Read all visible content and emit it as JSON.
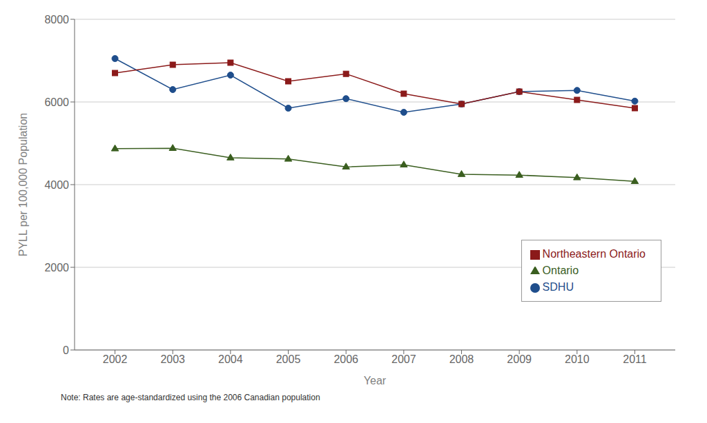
{
  "chart_data": {
    "type": "line",
    "x": [
      2002,
      2003,
      2004,
      2005,
      2006,
      2007,
      2008,
      2009,
      2010,
      2011
    ],
    "series": [
      {
        "name": "SDHU",
        "color": "#1f4e8c",
        "marker": "circle",
        "values": [
          7050,
          6300,
          6650,
          5850,
          6080,
          5750,
          5950,
          6250,
          6280,
          6020
        ]
      },
      {
        "name": "Northeastern Ontario",
        "color": "#8b1a1a",
        "marker": "square",
        "values": [
          6700,
          6900,
          6950,
          6500,
          6680,
          6200,
          5950,
          6250,
          6050,
          5850
        ]
      },
      {
        "name": "Ontario",
        "color": "#3a5e1f",
        "marker": "triangle",
        "values": [
          4870,
          4880,
          4650,
          4620,
          4430,
          4480,
          4250,
          4230,
          4170,
          4080
        ]
      }
    ],
    "xlabel": "Year",
    "ylabel": "PYLL per 100,000 Population",
    "xlim": [
      2001.3,
      2011.7
    ],
    "xticks": [
      2002,
      2003,
      2004,
      2005,
      2006,
      2007,
      2008,
      2009,
      2010,
      2011
    ],
    "ylim": [
      0,
      8000
    ],
    "yticks": [
      0,
      2000,
      4000,
      6000,
      8000
    ],
    "grid": true,
    "legend": "lower right",
    "note": "Note: Rates are age-standardized using the 2006 Canadian population"
  }
}
